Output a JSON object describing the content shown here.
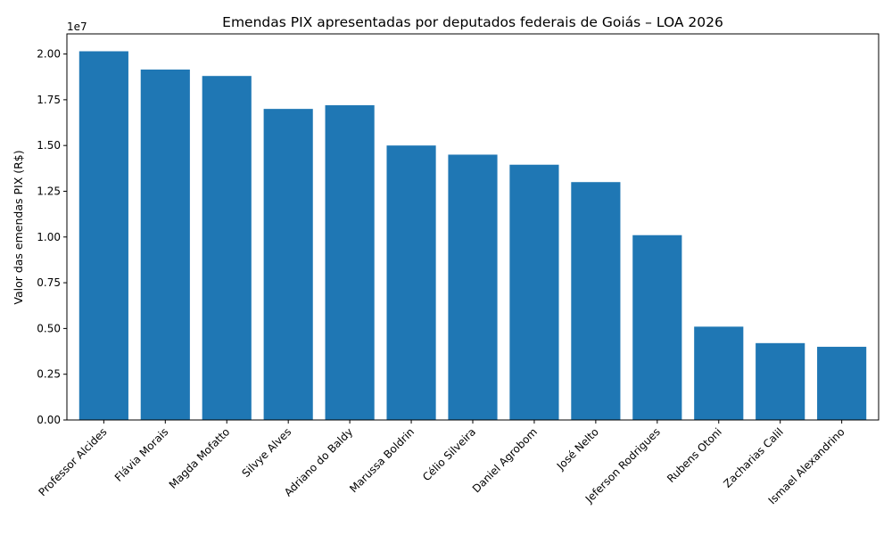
{
  "chart_data": {
    "type": "bar",
    "title": "Emendas PIX apresentadas por deputados federais de Goiás – LOA 2026",
    "xlabel": "",
    "ylabel": "Valor das emendas PIX (R$)",
    "y_offset_label": "1e7",
    "y_scale": 10000000,
    "ylim": [
      0,
      21100000
    ],
    "yticks": [
      0,
      2500000,
      5000000,
      7500000,
      10000000,
      12500000,
      15000000,
      17500000,
      20000000
    ],
    "ytick_labels": [
      "0.00",
      "0.25",
      "0.50",
      "0.75",
      "1.00",
      "1.25",
      "1.50",
      "1.75",
      "2.00"
    ],
    "grid": false,
    "legend": null,
    "bar_color": "#1f77b4",
    "categories": [
      "Professor Alcides",
      "Flávia Morais",
      "Magda Mofatto",
      "Silvye Alves",
      "Adriano do Baldy",
      "Marussa Boldrin",
      "Célio Silveira",
      "Daniel Agrobom",
      "José Nelto",
      "Jeferson Rodrigues",
      "Rubens Otoni",
      "Zacharias Calil",
      "Ismael Alexandrino"
    ],
    "values": [
      20150000,
      19150000,
      18800000,
      17000000,
      17200000,
      15000000,
      14500000,
      13950000,
      13000000,
      10100000,
      5100000,
      4200000,
      4000000
    ]
  }
}
